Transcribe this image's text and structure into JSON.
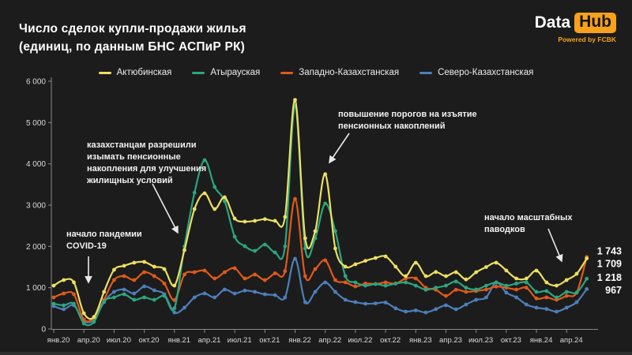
{
  "header": {
    "logo": {
      "part1": "Data",
      "part2": "Hub",
      "tagline": "Powered by FCBK",
      "accent": "#f7a11c"
    }
  },
  "chart_data": {
    "type": "line",
    "title": "Число сделок купли-продажи жилья\n(единиц, по данным БНС АСПиР РК)",
    "xlabel": "",
    "ylabel": "",
    "ylim": [
      0,
      6000
    ],
    "grid": false,
    "legend_position": "top",
    "months_total": 54,
    "x_range_note": "monthly, Jan 2020 – Jun 2024",
    "x_tick_labels": [
      "янв.20",
      "апр.20",
      "июл.20",
      "окт.20",
      "янв.21",
      "апр.21",
      "июл.21",
      "окт.21",
      "янв.22",
      "апр.22",
      "июл.22",
      "окт.22",
      "янв.23",
      "апр.23",
      "июл.23",
      "окт.23",
      "янв.24",
      "апр.24"
    ],
    "x_tick_month_indices": [
      0,
      3,
      6,
      9,
      12,
      15,
      18,
      21,
      24,
      27,
      30,
      33,
      36,
      39,
      42,
      45,
      48,
      51
    ],
    "y_tick_labels": [
      "0",
      "1 000",
      "2 000",
      "3 000",
      "4 000",
      "5 000",
      "6 000"
    ],
    "y_tick_values": [
      0,
      1000,
      2000,
      3000,
      4000,
      5000,
      6000
    ],
    "series": [
      {
        "name": "Актюбинская",
        "color": "#ecdf63",
        "end_label": "1 709",
        "values": [
          1050,
          1185,
          1130,
          380,
          290,
          900,
          1434,
          1530,
          1605,
          1625,
          1510,
          1450,
          1051,
          1911,
          2905,
          3287,
          2905,
          3191,
          2675,
          2600,
          2620,
          2660,
          2620,
          2714,
          5550,
          2200,
          2370,
          3750,
          1950,
          1510,
          1567,
          1650,
          1720,
          1758,
          1510,
          1280,
          1605,
          1280,
          1380,
          1280,
          1376,
          1200,
          1376,
          1500,
          1605,
          1415,
          1222,
          1222,
          1414,
          1128,
          1051,
          1185,
          1338,
          1709
        ]
      },
      {
        "name": "Атырауская",
        "color": "#2ca67f",
        "end_label": "1 218",
        "values": [
          611,
          573,
          611,
          134,
          172,
          669,
          765,
          840,
          707,
          765,
          707,
          800,
          500,
          2000,
          3300,
          4090,
          3441,
          3096,
          2236,
          2007,
          1892,
          2045,
          1854,
          2000,
          5400,
          1950,
          2200,
          3039,
          2370,
          1280,
          1128,
          1050,
          1090,
          1050,
          1100,
          1128,
          1050,
          950,
          1000,
          1051,
          1150,
          1000,
          956,
          1050,
          1128,
          1050,
          1100,
          1128,
          898,
          920,
          765,
          898,
          880,
          1218
        ]
      },
      {
        "name": "Западно-Казахстанская",
        "color": "#e05a1b",
        "end_label": "1 743",
        "values": [
          765,
          860,
          840,
          230,
          270,
          707,
          1185,
          1280,
          1185,
          1376,
          1280,
          1100,
          700,
          1319,
          1376,
          1414,
          1223,
          1376,
          1472,
          1223,
          1319,
          1185,
          1350,
          1400,
          3150,
          1280,
          1450,
          1663,
          1185,
          1130,
          1030,
          1100,
          1090,
          1128,
          1100,
          1222,
          1222,
          1000,
          950,
          800,
          950,
          898,
          920,
          956,
          1027,
          1000,
          956,
          1000,
          740,
          765,
          707,
          800,
          880,
          1743
        ]
      },
      {
        "name": "Северо-Казахстанская",
        "color": "#4d7fba",
        "end_label": "967",
        "values": [
          554,
          478,
          573,
          191,
          229,
          650,
          898,
          956,
          860,
          1032,
          936,
          840,
          400,
          516,
          765,
          860,
          765,
          956,
          860,
          930,
          898,
          840,
          820,
          765,
          1700,
          650,
          900,
          1128,
          898,
          707,
          650,
          611,
          620,
          640,
          500,
          420,
          450,
          400,
          480,
          573,
          478,
          592,
          707,
          765,
          1128,
          880,
          765,
          592,
          516,
          484,
          420,
          516,
          650,
          967
        ]
      }
    ],
    "annotations": [
      {
        "id": "covid",
        "text": "начало пандемии\nCOVID-19"
      },
      {
        "id": "pension-withdrawals",
        "text": "казахстанцам разрешили\nизымать пенсионные\nнакопления для улучшения\nжилищных условий"
      },
      {
        "id": "thresholds",
        "text": "повышение порогов на изъятие\nпенсионных накоплений"
      },
      {
        "id": "floods",
        "text": "начало масштабных\nпаводков"
      }
    ]
  }
}
